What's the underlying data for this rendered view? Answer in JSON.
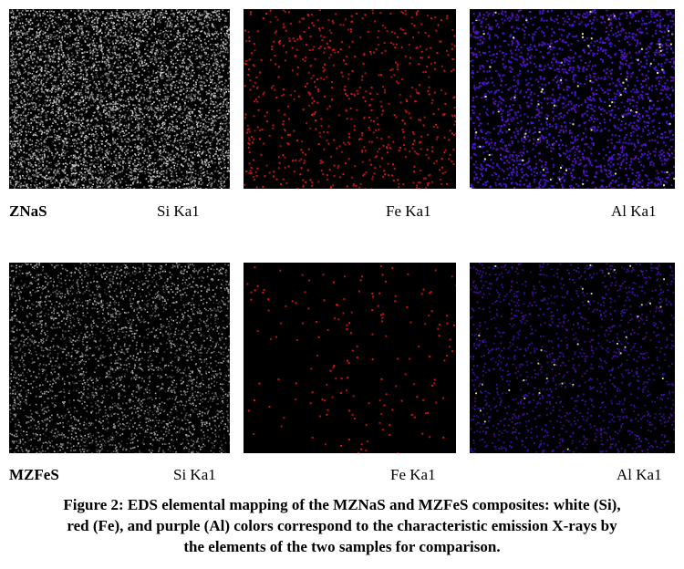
{
  "rows": [
    {
      "sample": "ZNaS",
      "labels": [
        "Si Ka1",
        "Fe Ka1",
        "Al Ka1"
      ]
    },
    {
      "sample": "MZFeS",
      "labels": [
        "Si Ka1",
        "Fe Ka1",
        "Al Ka1"
      ]
    }
  ],
  "caption": {
    "lines": [
      "Figure 2: EDS elemental mapping of the MZNaS and MZFeS composites: white (Si),",
      "red (Fe), and purple (Al) colors correspond to the characteristic emission X-rays by",
      "the elements of the two samples for comparison."
    ]
  }
}
